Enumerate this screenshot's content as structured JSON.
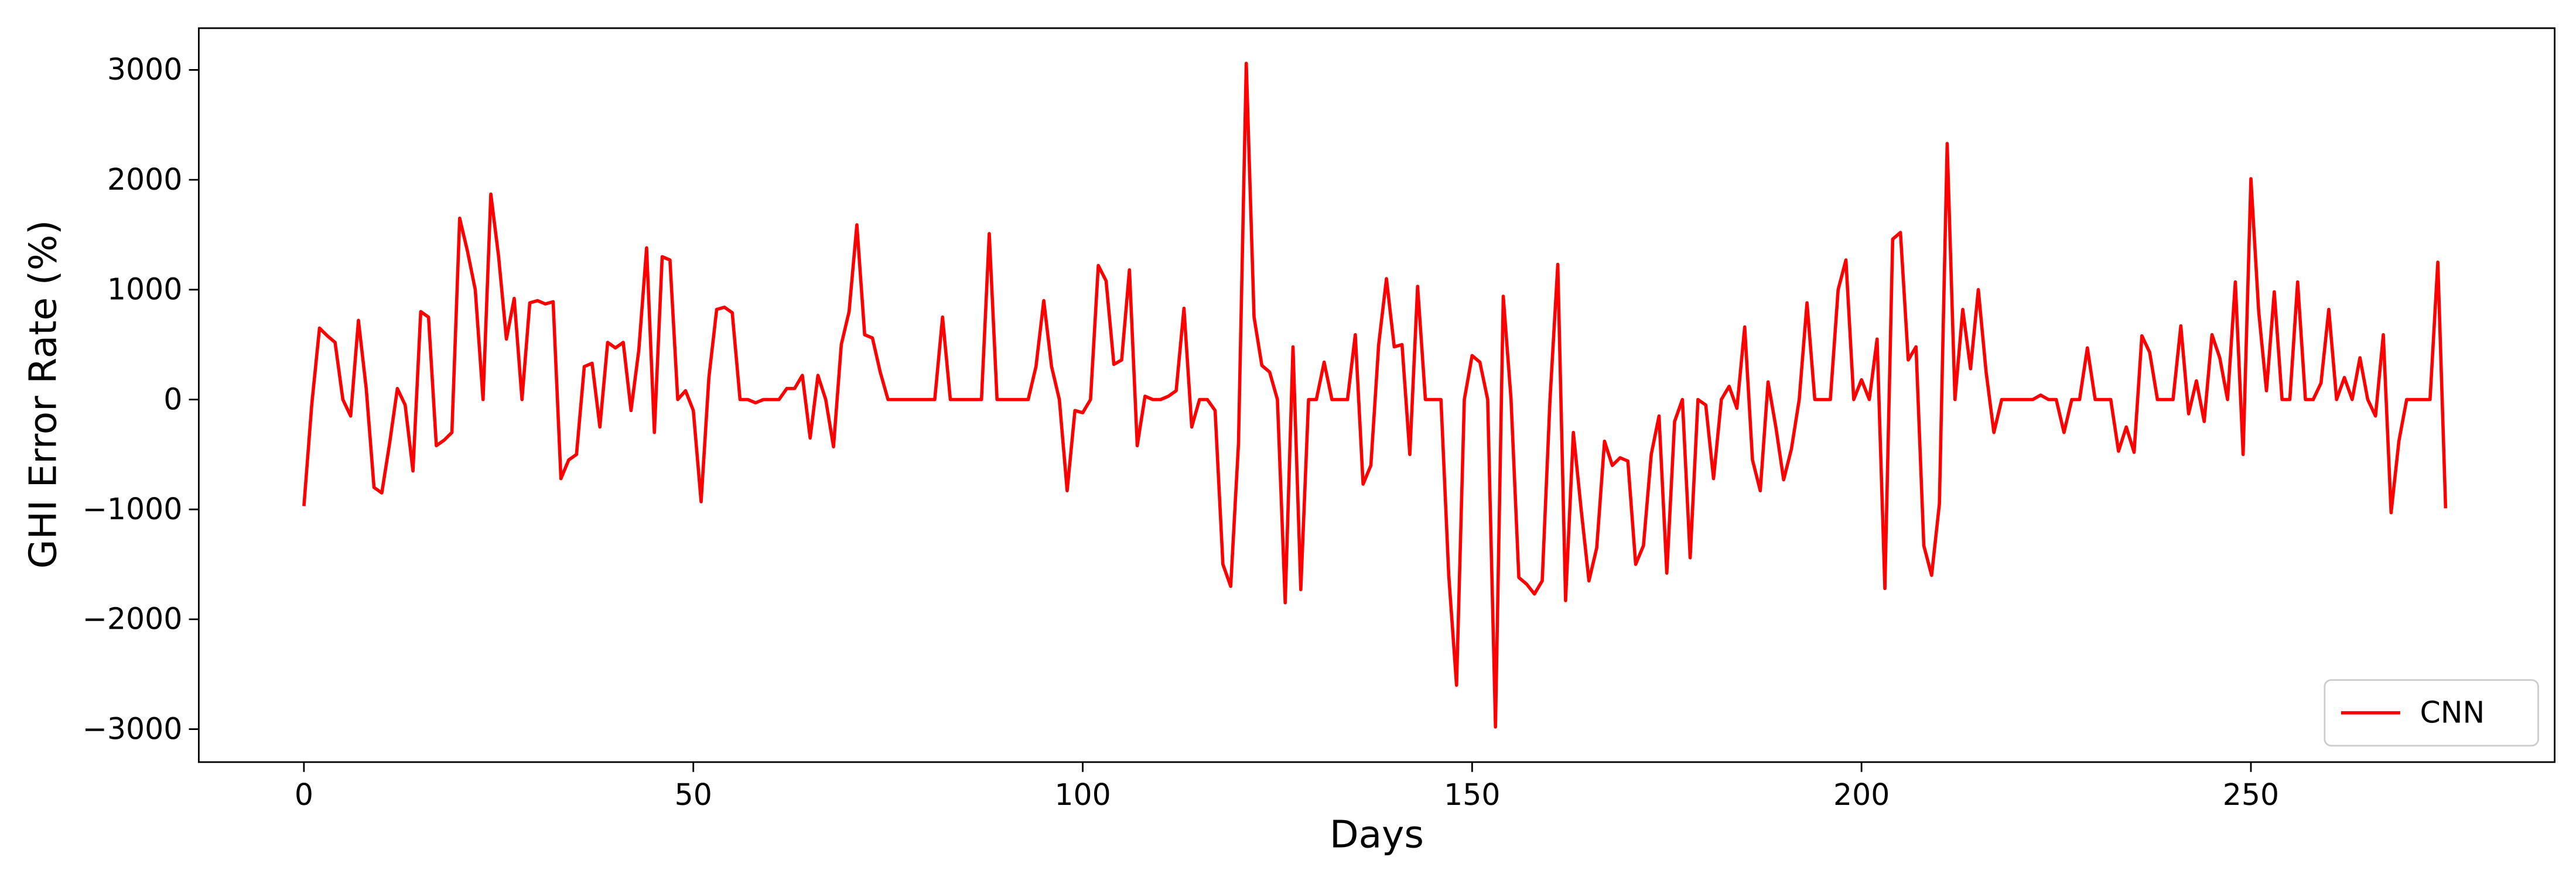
{
  "chart_data": {
    "type": "line",
    "xlabel": "Days",
    "ylabel": "GHI Error Rate (%)",
    "xlim": [
      -13.5,
      289
    ],
    "ylim": [
      -3300,
      3380
    ],
    "xticks": [
      0,
      50,
      100,
      150,
      200,
      250
    ],
    "yticks": [
      {
        "value": -3000,
        "label": "−3000"
      },
      {
        "value": -2000,
        "label": "−2000"
      },
      {
        "value": -1000,
        "label": "−1000"
      },
      0,
      1000,
      2000,
      3000
    ],
    "legend": "lower right",
    "grid": false,
    "x": [
      0,
      1,
      2,
      3,
      4,
      5,
      6,
      7,
      8,
      9,
      10,
      11,
      12,
      13,
      14,
      15,
      16,
      17,
      18,
      19,
      20,
      21,
      22,
      23,
      24,
      25,
      26,
      27,
      28,
      29,
      30,
      31,
      32,
      33,
      34,
      35,
      36,
      37,
      38,
      39,
      40,
      41,
      42,
      43,
      44,
      45,
      46,
      47,
      48,
      49,
      50,
      51,
      52,
      53,
      54,
      55,
      56,
      57,
      58,
      59,
      60,
      61,
      62,
      63,
      64,
      65,
      66,
      67,
      68,
      69,
      70,
      71,
      72,
      73,
      74,
      75,
      76,
      77,
      78,
      79,
      80,
      81,
      82,
      83,
      84,
      85,
      86,
      87,
      88,
      89,
      90,
      91,
      92,
      93,
      94,
      95,
      96,
      97,
      98,
      99,
      100,
      101,
      102,
      103,
      104,
      105,
      106,
      107,
      108,
      109,
      110,
      111,
      112,
      113,
      114,
      115,
      116,
      117,
      118,
      119,
      120,
      121,
      122,
      123,
      124,
      125,
      126,
      127,
      128,
      129,
      130,
      131,
      132,
      133,
      134,
      135,
      136,
      137,
      138,
      139,
      140,
      141,
      142,
      143,
      144,
      145,
      146,
      147,
      148,
      149,
      150,
      151,
      152,
      153,
      154,
      155,
      156,
      157,
      158,
      159,
      160,
      161,
      162,
      163,
      164,
      165,
      166,
      167,
      168,
      169,
      170,
      171,
      172,
      173,
      174,
      175,
      176,
      177,
      178,
      179,
      180,
      181,
      182,
      183,
      184,
      185,
      186,
      187,
      188,
      189,
      190,
      191,
      192,
      193,
      194,
      195,
      196,
      197,
      198,
      199,
      200,
      201,
      202,
      203,
      204,
      205,
      206,
      207,
      208,
      209,
      210,
      211,
      212,
      213,
      214,
      215,
      216,
      217,
      218,
      219,
      220,
      221,
      222,
      223,
      224,
      225,
      226,
      227,
      228,
      229,
      230,
      231,
      232,
      233,
      234,
      235,
      236,
      237,
      238,
      239,
      240,
      241,
      242,
      243,
      244,
      245,
      246,
      247,
      248,
      249,
      250,
      251,
      252,
      253,
      254,
      255,
      256,
      257,
      258,
      259,
      260,
      261,
      262,
      263,
      264,
      265,
      266,
      267,
      268,
      269,
      270,
      271,
      272,
      273,
      274,
      275
    ],
    "series": [
      {
        "name": "CNN",
        "color": "#ff0000",
        "values": [
          -970,
          -50,
          650,
          580,
          520,
          0,
          -150,
          720,
          100,
          -800,
          -850,
          -400,
          100,
          -50,
          -650,
          800,
          750,
          -420,
          -370,
          -300,
          1650,
          1350,
          1000,
          0,
          1870,
          1300,
          550,
          920,
          0,
          880,
          900,
          870,
          890,
          -720,
          -550,
          -500,
          300,
          330,
          -250,
          520,
          470,
          520,
          -100,
          450,
          1380,
          -300,
          1300,
          1270,
          0,
          80,
          -100,
          -930,
          200,
          820,
          840,
          790,
          0,
          0,
          -30,
          0,
          0,
          0,
          100,
          100,
          220,
          -350,
          220,
          0,
          -430,
          500,
          800,
          1590,
          590,
          560,
          250,
          0,
          0,
          0,
          0,
          0,
          0,
          0,
          750,
          0,
          0,
          0,
          0,
          0,
          1510,
          0,
          0,
          0,
          0,
          0,
          300,
          900,
          300,
          0,
          -830,
          -100,
          -120,
          0,
          1220,
          1080,
          320,
          360,
          1180,
          -420,
          30,
          0,
          0,
          30,
          80,
          830,
          -250,
          0,
          0,
          -100,
          -1500,
          -1700,
          -400,
          3060,
          750,
          310,
          250,
          0,
          -1850,
          480,
          -1730,
          0,
          0,
          340,
          0,
          0,
          0,
          590,
          -770,
          -600,
          500,
          1100,
          480,
          500,
          -500,
          1030,
          0,
          0,
          0,
          -1600,
          -2600,
          0,
          400,
          340,
          0,
          -2980,
          940,
          0,
          -1620,
          -1680,
          -1770,
          -1650,
          0,
          1230,
          -1830,
          -300,
          -1000,
          -1650,
          -1350,
          -380,
          -600,
          -530,
          -560,
          -1500,
          -1330,
          -500,
          -150,
          -1580,
          -200,
          0,
          -1440,
          0,
          -50,
          -720,
          0,
          120,
          -80,
          660,
          -550,
          -830,
          160,
          -250,
          -730,
          -450,
          0,
          880,
          0,
          0,
          0,
          1000,
          1270,
          0,
          180,
          0,
          550,
          -1720,
          1460,
          1520,
          360,
          480,
          -1330,
          -1600,
          -950,
          2330,
          0,
          820,
          280,
          1000,
          250,
          -300,
          0,
          0,
          0,
          0,
          0,
          40,
          0,
          0,
          -300,
          0,
          0,
          470,
          0,
          0,
          0,
          -470,
          -250,
          -480,
          580,
          430,
          0,
          0,
          0,
          670,
          -130,
          170,
          -200,
          590,
          380,
          0,
          1070,
          -500,
          2010,
          800,
          80,
          980,
          0,
          0,
          1070,
          0,
          0,
          150,
          820,
          0,
          200,
          0,
          380,
          0,
          -150,
          590,
          -1030,
          -380,
          0,
          0,
          0,
          0,
          1250,
          -990
        ]
      }
    ]
  }
}
